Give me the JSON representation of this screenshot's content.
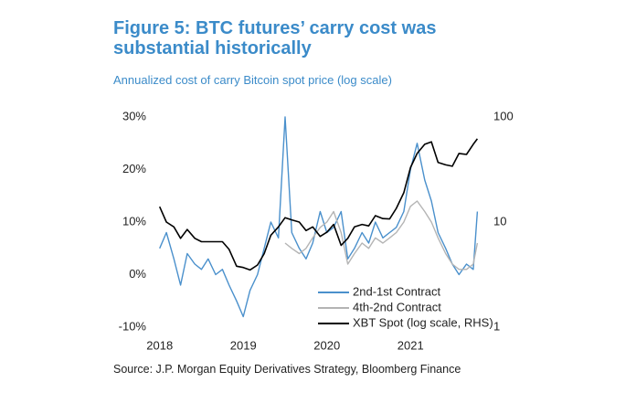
{
  "chart_data": {
    "type": "line",
    "title": "Figure 5: BTC futures’ carry cost was substantial historically",
    "subtitle": "Annualized cost of carry Bitcoin spot price (log scale)",
    "source": "Source: J.P. Morgan Equity Derivatives Strategy, Bloomberg Finance",
    "x": [
      2018,
      2018.08,
      2018.17,
      2018.25,
      2018.33,
      2018.42,
      2018.5,
      2018.58,
      2018.67,
      2018.75,
      2018.83,
      2018.92,
      2019,
      2019.08,
      2019.17,
      2019.25,
      2019.33,
      2019.42,
      2019.5,
      2019.58,
      2019.67,
      2019.75,
      2019.83,
      2019.92,
      2020,
      2020.08,
      2020.17,
      2020.25,
      2020.33,
      2020.42,
      2020.5,
      2020.58,
      2020.67,
      2020.75,
      2020.83,
      2020.92,
      2021,
      2021.08,
      2021.17,
      2021.25,
      2021.33,
      2021.42,
      2021.5,
      2021.58,
      2021.67,
      2021.75,
      2021.8
    ],
    "xlim": [
      2017.97,
      2021.85
    ],
    "xticks": [
      2018,
      2019,
      2020,
      2021
    ],
    "ylim": [
      -10,
      30
    ],
    "yticks": [
      {
        "value": -10,
        "label": "-10%"
      },
      {
        "value": 0,
        "label": "0%"
      },
      {
        "value": 10,
        "label": "10%"
      },
      {
        "value": 20,
        "label": "20%"
      },
      {
        "value": 30,
        "label": "30%"
      }
    ],
    "y2lim": [
      1,
      100
    ],
    "y2ticks": [
      1,
      10,
      100
    ],
    "y2_log": true,
    "legend": "lower right",
    "series": [
      {
        "name": "2nd-1st Contract",
        "color": "#4a90cc",
        "values": [
          5,
          8,
          3,
          -2,
          4,
          2,
          1,
          3,
          0,
          1,
          -2,
          -5,
          -8,
          -3,
          0,
          5,
          10,
          7,
          30,
          8,
          5,
          3,
          6,
          12,
          8,
          9,
          12,
          3,
          5,
          8,
          6,
          10,
          7,
          8,
          9,
          12,
          20,
          25,
          18,
          14,
          8,
          5,
          2,
          0,
          2,
          1,
          12
        ]
      },
      {
        "name": "4th-2nd Contract",
        "color": "#b4b4b4",
        "values": [
          null,
          null,
          null,
          null,
          null,
          null,
          null,
          null,
          null,
          null,
          null,
          null,
          null,
          null,
          null,
          null,
          null,
          null,
          6,
          5,
          4,
          5,
          7,
          9,
          10,
          12,
          8,
          2,
          4,
          6,
          5,
          7,
          6,
          7,
          8,
          10,
          13,
          14,
          12,
          10,
          7,
          4,
          2,
          1,
          1,
          2,
          6
        ]
      },
      {
        "name": "XBT Spot (log scale, RHS)",
        "color": "#000000",
        "axis": "y2",
        "values": [
          14,
          10,
          9,
          7,
          8.5,
          7,
          6.5,
          6.5,
          6.5,
          6.5,
          5.5,
          3.8,
          3.7,
          3.5,
          3.9,
          5,
          7.5,
          9,
          11,
          10.5,
          10,
          8.3,
          9,
          7.3,
          8,
          9.5,
          6,
          7,
          9,
          9.5,
          9.2,
          11.5,
          10.8,
          10.7,
          13.5,
          19,
          33,
          45,
          55,
          58,
          37,
          35,
          34,
          45,
          44,
          55,
          62
        ]
      }
    ]
  }
}
